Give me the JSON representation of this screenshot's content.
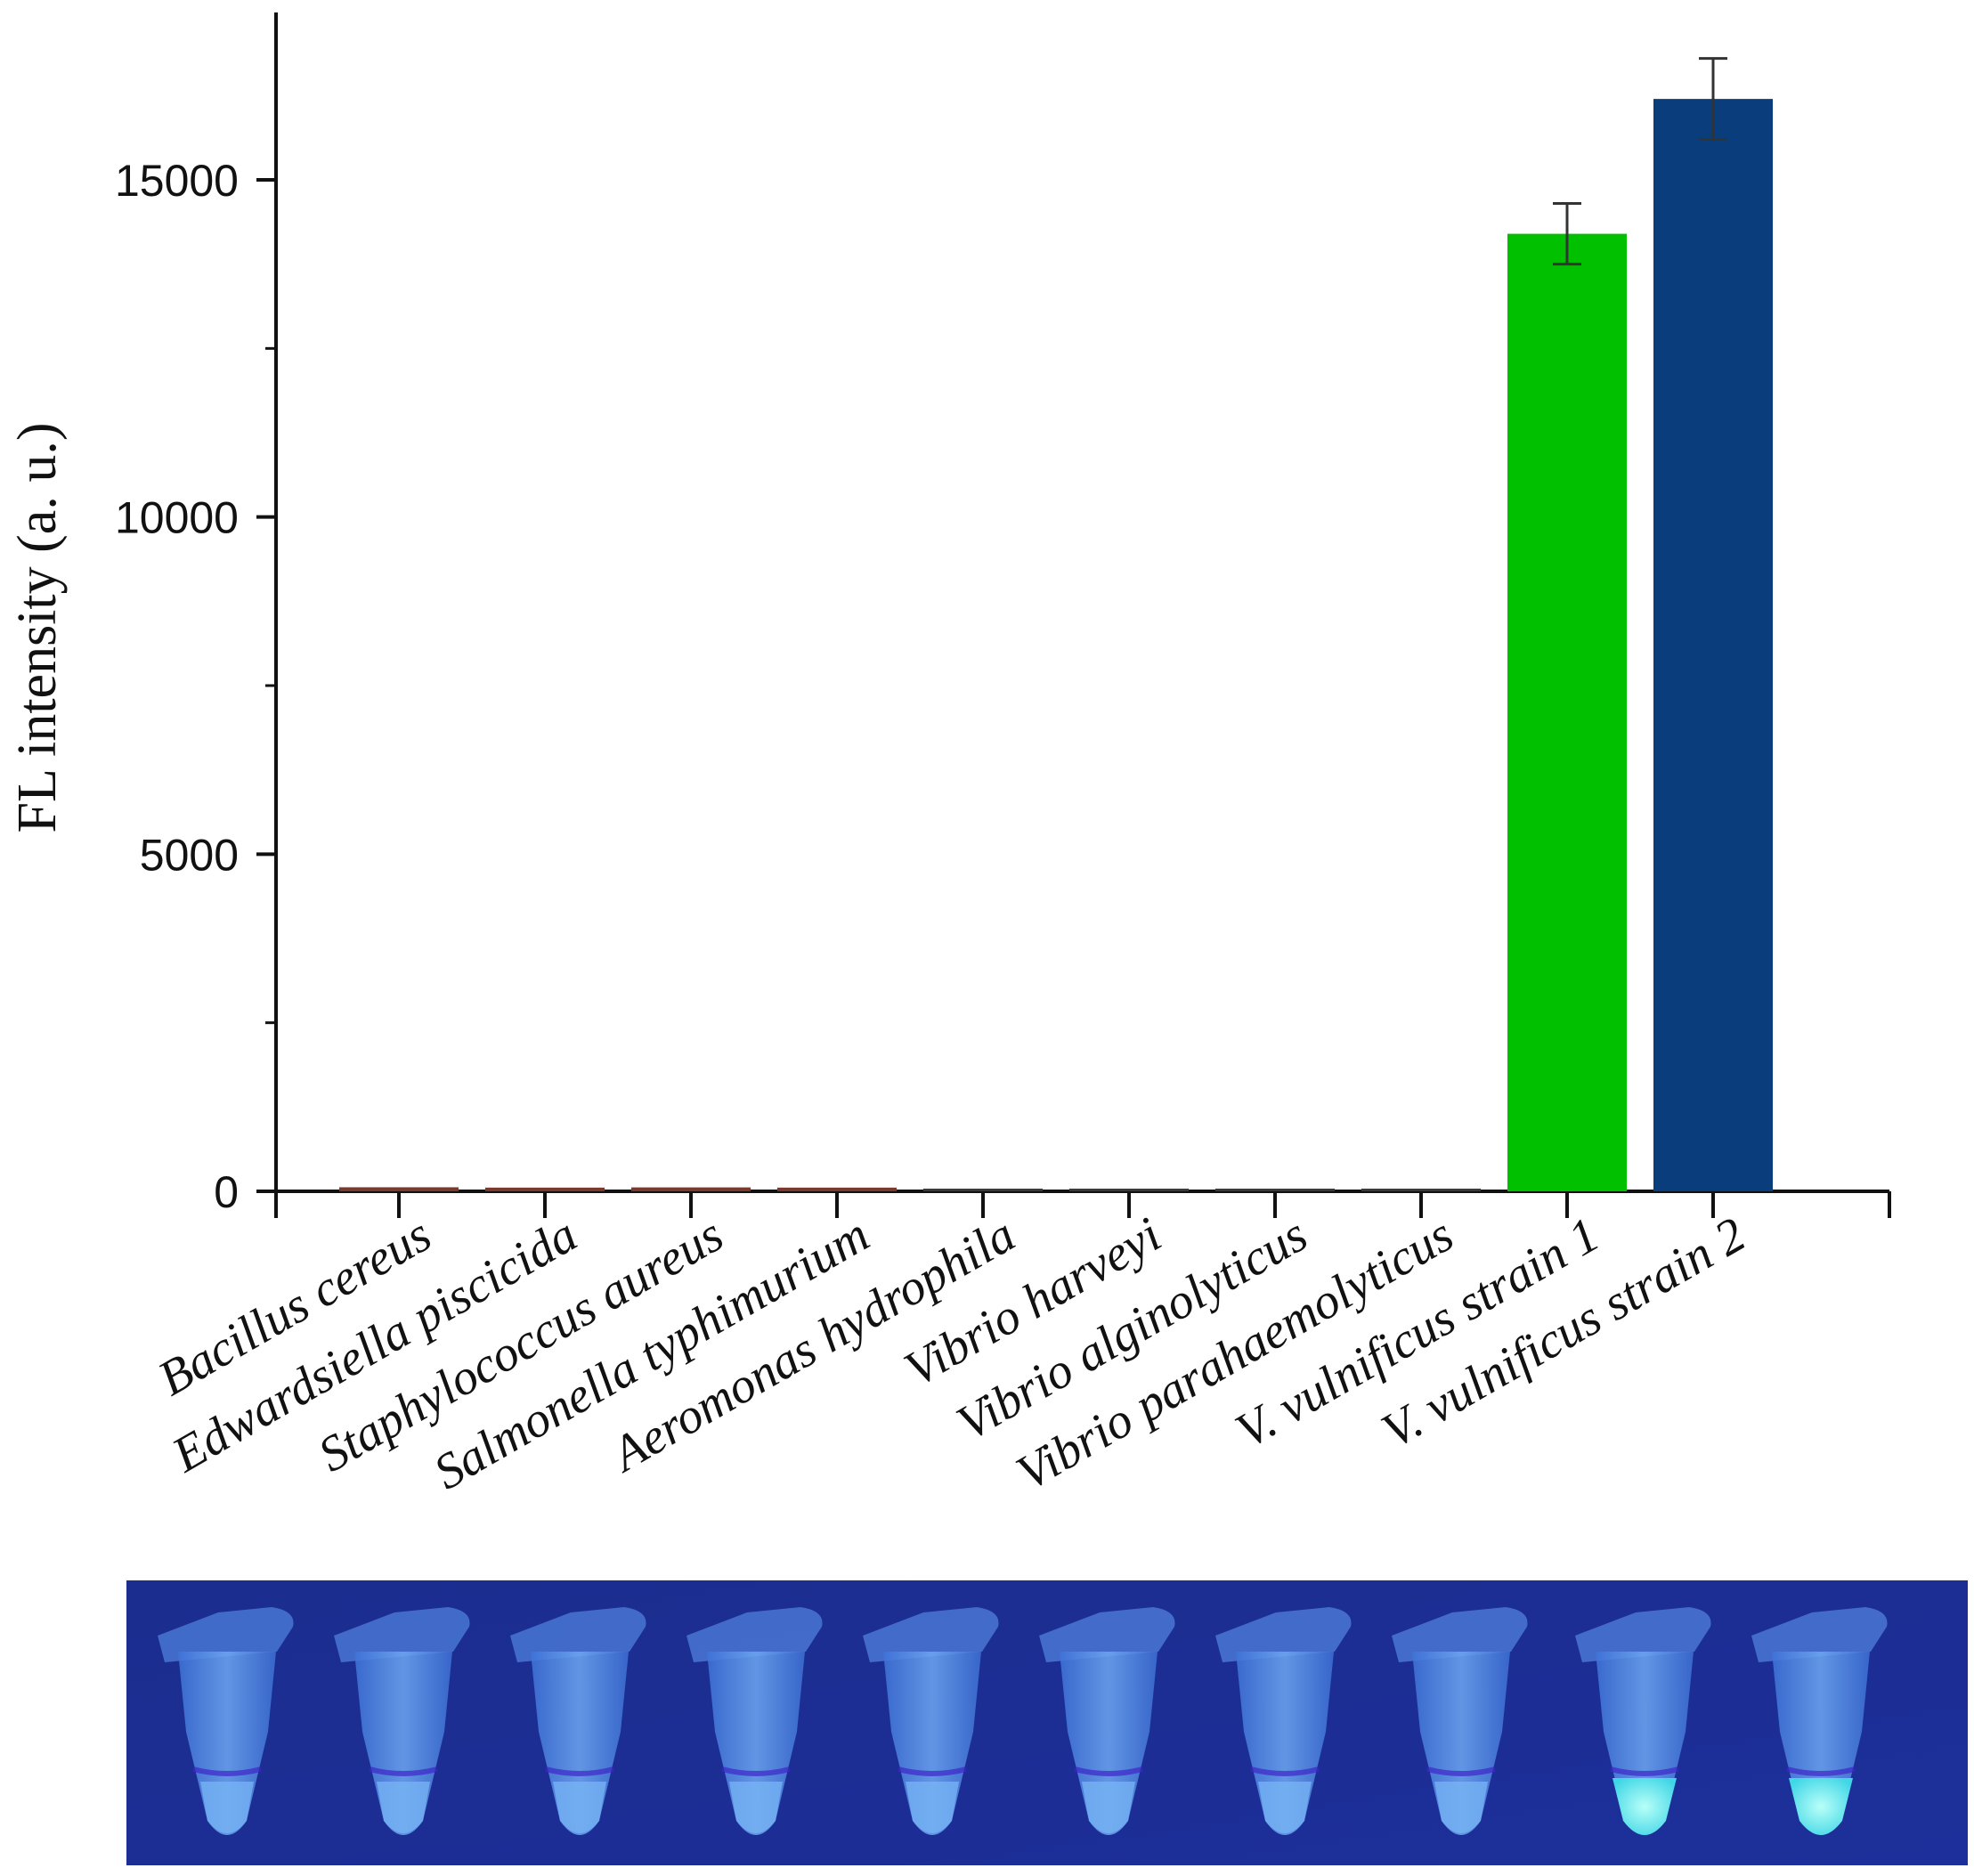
{
  "chart_data": {
    "type": "bar",
    "ylabel": "FL intensity (a. u.)",
    "ylim": [
      0,
      17500
    ],
    "yticks": [
      0,
      5000,
      10000,
      15000
    ],
    "categories": [
      "Bacillus cereus",
      "Edwardsiella piscicida",
      "Staphylococcus aureus",
      "Salmonella typhimurium",
      "Aeromonas hydrophila",
      "Vibrio harveyi",
      "Vibrio alginolyticus",
      "Vibrio parahaemolyticus",
      "V. vulnificus strain 1",
      "V. vulnificus strain 2"
    ],
    "values": [
      60,
      55,
      58,
      55,
      30,
      25,
      25,
      20,
      14200,
      16200
    ],
    "errors": [
      0,
      0,
      0,
      0,
      0,
      0,
      0,
      0,
      450,
      600
    ],
    "colors": [
      "#7a3a2e",
      "#7a3a2e",
      "#7a3a2e",
      "#7a3a2e",
      "#3a3a3a",
      "#3a3a3a",
      "#3a3a3a",
      "#3a3a3a",
      "#00c000",
      "#0a3d7c"
    ],
    "grid": false
  },
  "photo": {
    "tube_count": 10,
    "bright_tubes": [
      9,
      10
    ],
    "background_color": "#1d2f9a"
  }
}
